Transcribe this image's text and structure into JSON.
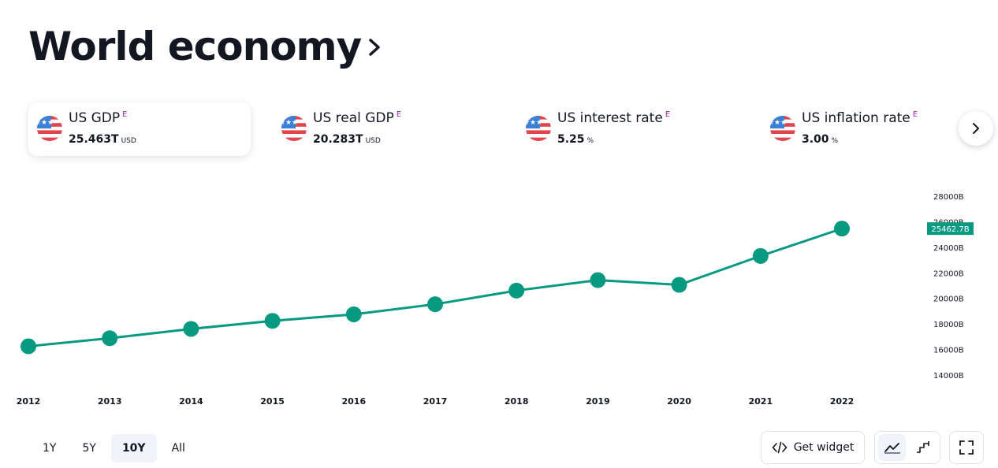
{
  "header": {
    "title": "World economy"
  },
  "cards": [
    {
      "title": "US GDP",
      "badge": "E",
      "value": "25.463T",
      "unit": "USD",
      "active": true
    },
    {
      "title": "US real GDP",
      "badge": "E",
      "value": "20.283T",
      "unit": "USD",
      "active": false
    },
    {
      "title": "US interest rate",
      "badge": "E",
      "value": "5.25",
      "unit": "%",
      "active": false
    },
    {
      "title": "US inflation rate",
      "badge": "E",
      "value": "3.00",
      "unit": "%",
      "active": false
    }
  ],
  "ranges": [
    "1Y",
    "5Y",
    "10Y",
    "All"
  ],
  "active_range": "10Y",
  "toolbar": {
    "widget_label": "Get widget"
  },
  "colors": {
    "line": "#089981",
    "accent_badge": "#9c27b0",
    "price_tag": "#089981"
  },
  "icons": {
    "next": "chevron-right-icon",
    "widget": "code-icon",
    "line_style": "line-chart-icon",
    "step_style": "step-chart-icon",
    "fullscreen": "fullscreen-icon"
  },
  "chart_data": {
    "type": "line",
    "x": [
      "2012",
      "2013",
      "2014",
      "2015",
      "2016",
      "2017",
      "2018",
      "2019",
      "2020",
      "2021",
      "2022"
    ],
    "series": [
      {
        "values": [
          16250,
          16880,
          17610,
          18240,
          18750,
          19540,
          20610,
          21430,
          21060,
          23320,
          25462.7
        ]
      }
    ],
    "y_ticks": [
      "14000B",
      "16000B",
      "18000B",
      "20000B",
      "22000B",
      "24000B",
      "26000B",
      "28000B"
    ],
    "y_tick_values": [
      14000,
      16000,
      18000,
      20000,
      22000,
      24000,
      26000,
      28000
    ],
    "ylim": [
      13500,
      28500
    ],
    "last_value_label": "25462.7B",
    "grid": false
  }
}
